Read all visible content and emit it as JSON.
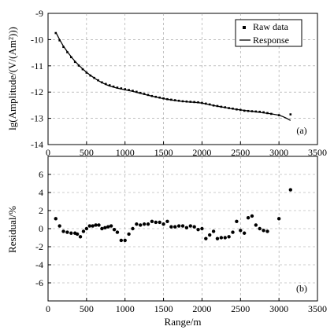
{
  "chart_data": [
    {
      "id": "a",
      "type": "line",
      "panel_label": "(a)",
      "ylabel": "lg(Amplitude/(V/(Am²)))",
      "xlabel": "",
      "xlim": [
        0,
        3500
      ],
      "ylim": [
        -14,
        -9
      ],
      "xticks": [
        0,
        500,
        1000,
        1500,
        2000,
        2500,
        3000,
        3500
      ],
      "yticks": [
        -14,
        -13,
        -12,
        -11,
        -10,
        -9
      ],
      "grid": true,
      "legend_position": "top-right",
      "legend": [
        "Raw data",
        "Response"
      ],
      "series": [
        {
          "name": "Raw data",
          "style": "points",
          "x": [
            100,
            150,
            200,
            250,
            300,
            350,
            400,
            450,
            500,
            550,
            600,
            650,
            700,
            750,
            800,
            850,
            900,
            950,
            1000,
            1050,
            1100,
            1150,
            1200,
            1250,
            1300,
            1350,
            1400,
            1450,
            1500,
            1550,
            1600,
            1650,
            1700,
            1750,
            1800,
            1850,
            1900,
            1950,
            2000,
            2050,
            2100,
            2150,
            2200,
            2250,
            2300,
            2350,
            2400,
            2450,
            2500,
            2550,
            2600,
            2650,
            2700,
            2750,
            2800,
            2850,
            2900,
            3000,
            3150
          ],
          "y": [
            -9.75,
            -10.03,
            -10.28,
            -10.48,
            -10.67,
            -10.85,
            -10.99,
            -11.13,
            -11.26,
            -11.37,
            -11.46,
            -11.55,
            -11.63,
            -11.69,
            -11.74,
            -11.79,
            -11.83,
            -11.86,
            -11.89,
            -11.92,
            -11.95,
            -11.99,
            -12.03,
            -12.07,
            -12.11,
            -12.15,
            -12.18,
            -12.21,
            -12.24,
            -12.27,
            -12.29,
            -12.31,
            -12.33,
            -12.35,
            -12.36,
            -12.37,
            -12.38,
            -12.39,
            -12.41,
            -12.44,
            -12.47,
            -12.51,
            -12.53,
            -12.56,
            -12.58,
            -12.61,
            -12.63,
            -12.66,
            -12.68,
            -12.71,
            -12.72,
            -12.73,
            -12.74,
            -12.75,
            -12.77,
            -12.8,
            -12.83,
            -12.88,
            -12.85
          ]
        },
        {
          "name": "Response",
          "style": "line",
          "x": [
            100,
            150,
            200,
            250,
            300,
            350,
            400,
            450,
            500,
            550,
            600,
            650,
            700,
            750,
            800,
            850,
            900,
            950,
            1000,
            1100,
            1200,
            1300,
            1400,
            1500,
            1600,
            1700,
            1800,
            1900,
            2000,
            2100,
            2200,
            2300,
            2400,
            2500,
            2600,
            2700,
            2800,
            2900,
            3000,
            3050,
            3100,
            3150
          ],
          "y": [
            -9.72,
            -10.0,
            -10.25,
            -10.46,
            -10.65,
            -10.83,
            -10.98,
            -11.12,
            -11.25,
            -11.36,
            -11.46,
            -11.56,
            -11.64,
            -11.71,
            -11.77,
            -11.81,
            -11.85,
            -11.88,
            -11.91,
            -11.97,
            -12.05,
            -12.12,
            -12.19,
            -12.25,
            -12.3,
            -12.34,
            -12.37,
            -12.39,
            -12.42,
            -12.48,
            -12.54,
            -12.59,
            -12.64,
            -12.68,
            -12.72,
            -12.75,
            -12.79,
            -12.83,
            -12.88,
            -12.93,
            -13.0,
            -13.08
          ]
        }
      ]
    },
    {
      "id": "b",
      "type": "scatter",
      "panel_label": "(b)",
      "ylabel": "Residual/%",
      "xlabel": "Range/m",
      "xlim": [
        0,
        3500
      ],
      "ylim": [
        -8,
        8
      ],
      "xticks": [
        0,
        500,
        1000,
        1500,
        2000,
        2500,
        3000,
        3500
      ],
      "yticks": [
        -6,
        -4,
        -2,
        0,
        2,
        4,
        6
      ],
      "grid": true,
      "series": [
        {
          "x": [
            100,
            150,
            200,
            250,
            300,
            350,
            380,
            420,
            460,
            500,
            540,
            580,
            620,
            660,
            700,
            740,
            780,
            820,
            860,
            900,
            950,
            1000,
            1050,
            1100,
            1150,
            1200,
            1250,
            1300,
            1350,
            1400,
            1450,
            1500,
            1550,
            1600,
            1650,
            1700,
            1750,
            1800,
            1850,
            1900,
            1950,
            2000,
            2050,
            2100,
            2150,
            2200,
            2250,
            2300,
            2350,
            2400,
            2450,
            2500,
            2550,
            2600,
            2650,
            2700,
            2750,
            2800,
            2850,
            3000,
            3150
          ],
          "y": [
            1.1,
            0.3,
            -0.3,
            -0.4,
            -0.5,
            -0.5,
            -0.6,
            -0.9,
            -0.3,
            0.0,
            0.3,
            0.3,
            0.4,
            0.4,
            0.0,
            0.1,
            0.2,
            0.3,
            -0.1,
            -0.4,
            -1.3,
            -1.3,
            -0.6,
            0.0,
            0.5,
            0.4,
            0.5,
            0.5,
            0.8,
            0.7,
            0.7,
            0.5,
            0.8,
            0.2,
            0.2,
            0.3,
            0.3,
            0.1,
            0.3,
            0.2,
            -0.1,
            0.0,
            -1.1,
            -0.7,
            -0.3,
            -1.1,
            -1.0,
            -1.0,
            -0.9,
            -0.4,
            0.8,
            -0.2,
            -0.5,
            1.2,
            1.4,
            0.4,
            0.0,
            -0.2,
            -0.3,
            1.1,
            4.3
          ]
        }
      ]
    }
  ]
}
